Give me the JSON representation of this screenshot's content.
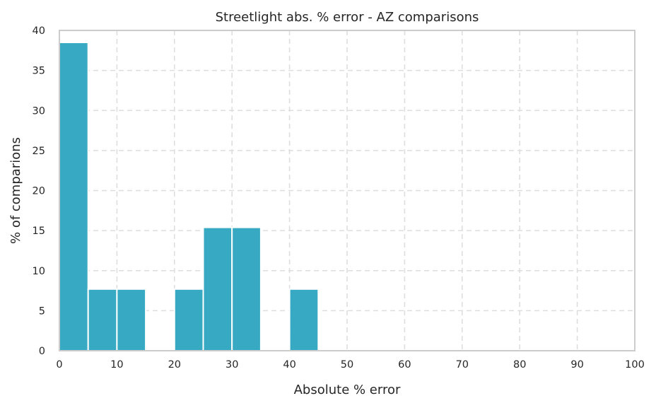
{
  "chart_data": {
    "type": "bar",
    "title": "Streetlight abs. % error - AZ comparisons",
    "xlabel": "Absolute % error",
    "ylabel": "% of comparions",
    "xlim": [
      0,
      100
    ],
    "ylim": [
      0,
      40
    ],
    "x_ticks": [
      "0",
      "10",
      "20",
      "30",
      "40",
      "50",
      "60",
      "70",
      "80",
      "90",
      "100"
    ],
    "y_ticks": [
      "0",
      "5",
      "10",
      "15",
      "20",
      "25",
      "30",
      "35",
      "40"
    ],
    "grid": true,
    "bin_width": 5,
    "bins": [
      {
        "x_start": 0,
        "x_end": 5,
        "value": 38.5
      },
      {
        "x_start": 5,
        "x_end": 10,
        "value": 7.7
      },
      {
        "x_start": 10,
        "x_end": 15,
        "value": 7.7
      },
      {
        "x_start": 20,
        "x_end": 25,
        "value": 7.7
      },
      {
        "x_start": 25,
        "x_end": 30,
        "value": 15.4
      },
      {
        "x_start": 30,
        "x_end": 35,
        "value": 15.4
      },
      {
        "x_start": 40,
        "x_end": 45,
        "value": 7.7
      }
    ],
    "colors": {
      "bar": "#38a9c2",
      "grid": "#dedede",
      "frame": "#cccccc",
      "text": "#262626"
    }
  }
}
